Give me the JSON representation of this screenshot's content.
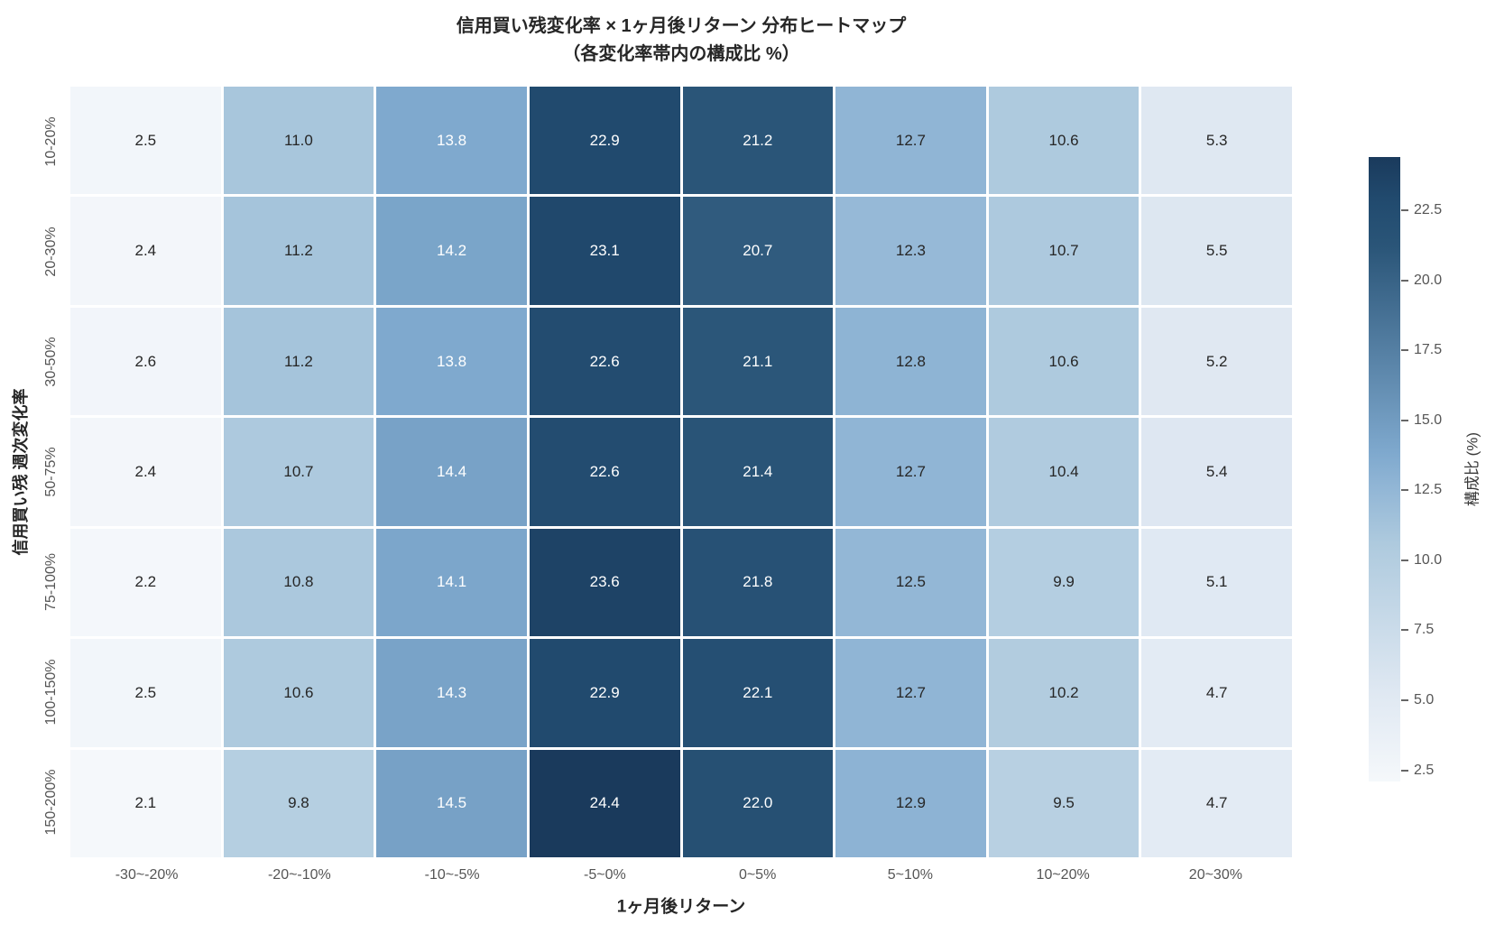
{
  "chart_data": {
    "type": "heatmap",
    "title": "信用買い残変化率 × 1ヶ月後リターン 分布ヒートマップ",
    "subtitle": "（各変化率帯内の構成比 %）",
    "xlabel": "1ヶ月後リターン",
    "ylabel": "信用買い残 週次変化率",
    "x_categories": [
      "-30~-20%",
      "-20~-10%",
      "-10~-5%",
      "-5~0%",
      "0~5%",
      "5~10%",
      "10~20%",
      "20~30%"
    ],
    "y_categories": [
      "10-20%",
      "20-30%",
      "30-50%",
      "50-75%",
      "75-100%",
      "100-150%",
      "150-200%"
    ],
    "values": [
      [
        2.5,
        11.0,
        13.8,
        22.9,
        21.2,
        12.7,
        10.6,
        5.3
      ],
      [
        2.4,
        11.2,
        14.2,
        23.1,
        20.7,
        12.3,
        10.7,
        5.5
      ],
      [
        2.6,
        11.2,
        13.8,
        22.6,
        21.1,
        12.8,
        10.6,
        5.2
      ],
      [
        2.4,
        10.7,
        14.4,
        22.6,
        21.4,
        12.7,
        10.4,
        5.4
      ],
      [
        2.2,
        10.8,
        14.1,
        23.6,
        21.8,
        12.5,
        9.9,
        5.1
      ],
      [
        2.5,
        10.6,
        14.3,
        22.9,
        22.1,
        12.7,
        10.2,
        4.7
      ],
      [
        2.1,
        9.8,
        14.5,
        24.4,
        22.0,
        12.9,
        9.5,
        4.7
      ]
    ],
    "colorbar": {
      "label": "構成比 (%)",
      "ticks": [
        2.5,
        5.0,
        7.5,
        10.0,
        12.5,
        15.0,
        17.5,
        20.0,
        22.5
      ],
      "vmin": 2.1,
      "vmax": 24.4,
      "position": "right"
    },
    "grid": "off",
    "colors": {
      "colormap_stops": [
        [
          0.0,
          "#f5f8fb"
        ],
        [
          0.143,
          "#dfe8f2"
        ],
        [
          0.381,
          "#aecade"
        ],
        [
          0.475,
          "#90b5d5"
        ],
        [
          0.525,
          "#7fa9ce"
        ],
        [
          0.857,
          "#2a5578"
        ],
        [
          0.933,
          "#214a6e"
        ],
        [
          1.0,
          "#1a3a5c"
        ]
      ],
      "annotation_dark": "#262626",
      "annotation_light": "#ffffff",
      "tick_label": "#555555",
      "title": "#262626",
      "background": "#ffffff"
    }
  }
}
